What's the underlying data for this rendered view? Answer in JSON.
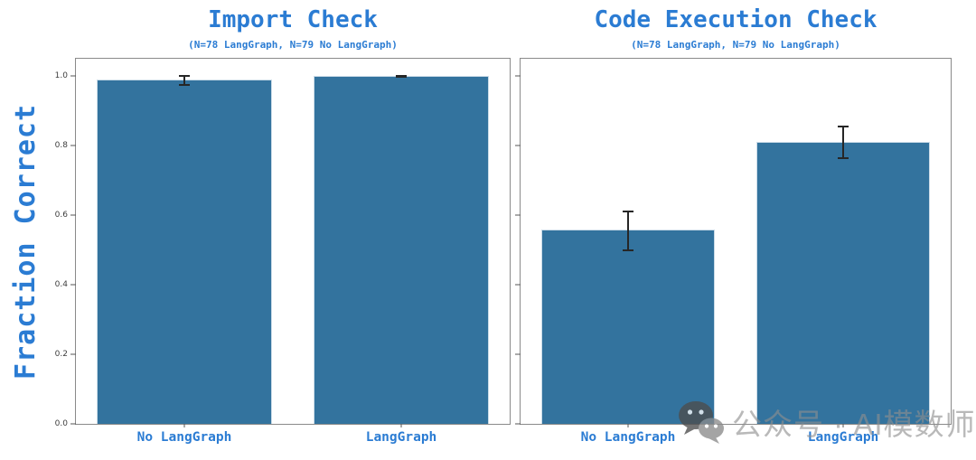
{
  "figure": {
    "ylabel": "Fraction Correct",
    "watermark_text": "公众号 · AI模数师"
  },
  "colors": {
    "accent_blue_text": "#2b7cd3",
    "bar_fill": "#33739e",
    "error_bar": "#262626",
    "tick_label_gray": "#3d3d3d",
    "spine_gray": "#8a8a8a",
    "watermark_gray": "#8f8f8f"
  },
  "chart_data": [
    {
      "type": "bar",
      "title": "Import Check",
      "subtitle": "(N=78 LangGraph, N=79 No LangGraph)",
      "categories": [
        "No LangGraph",
        "LangGraph"
      ],
      "values": [
        0.99,
        1.0
      ],
      "error_bars": [
        [
          0.975,
          1.0
        ],
        [
          0.997,
          1.0
        ]
      ],
      "ylabel": "Fraction Correct",
      "ylim": [
        0,
        1.05
      ],
      "yticks": [
        0.0,
        0.2,
        0.4,
        0.6,
        0.8,
        1.0
      ],
      "show_ytick_labels": true,
      "grid": false,
      "legend": "none",
      "bar_color": "#33739e",
      "bar_centers_pct": [
        25,
        75
      ],
      "bar_width_pct": 40.5
    },
    {
      "type": "bar",
      "title": "Code Execution Check",
      "subtitle": "(N=78 LangGraph, N=79 No LangGraph)",
      "categories": [
        "No LangGraph",
        "LangGraph"
      ],
      "values": [
        0.56,
        0.81
      ],
      "error_bars": [
        [
          0.5,
          0.61
        ],
        [
          0.765,
          0.855
        ]
      ],
      "ylabel": "",
      "ylim": [
        0,
        1.05
      ],
      "yticks": [
        0.0,
        0.2,
        0.4,
        0.6,
        0.8,
        1.0
      ],
      "show_ytick_labels": false,
      "grid": false,
      "legend": "none",
      "bar_color": "#33739e",
      "bar_centers_pct": [
        25,
        75
      ],
      "bar_width_pct": 40.5
    }
  ]
}
